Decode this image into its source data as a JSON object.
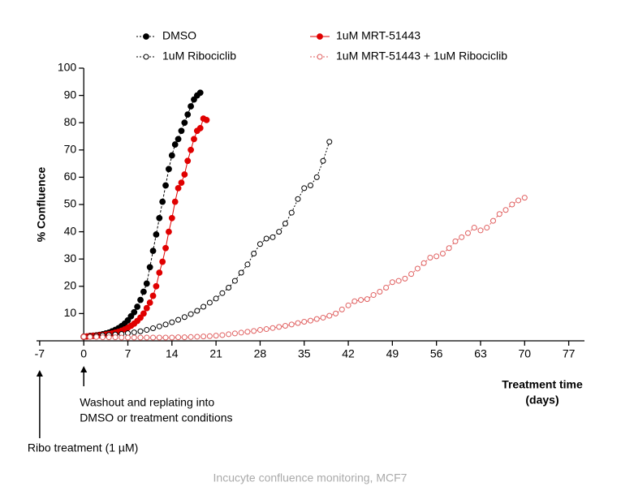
{
  "chart_data": {
    "type": "scatter-line",
    "y_label": "% Confluence",
    "x_label": [
      "Treatment time",
      "(days)"
    ],
    "xlim": [
      -7.5,
      79.5
    ],
    "ylim": [
      0,
      100
    ],
    "xticks": [
      -7,
      0,
      7,
      14,
      21,
      28,
      35,
      42,
      49,
      56,
      63,
      70,
      77
    ],
    "yticks": [
      10,
      20,
      30,
      40,
      50,
      60,
      70,
      80,
      90,
      100
    ],
    "series": [
      {
        "name": "DMSO",
        "color": "#000000",
        "filled": true,
        "x": [
          0,
          0.5,
          1,
          1.5,
          2,
          2.5,
          3,
          3.5,
          4,
          4.5,
          5,
          5.5,
          6,
          6.5,
          7,
          7.5,
          8,
          8.5,
          9,
          9.5,
          10,
          10.5,
          11,
          11.5,
          12,
          12.5,
          13,
          13.5,
          14,
          14.5,
          15,
          15.5,
          16,
          16.5,
          17,
          17.5,
          18,
          18.5
        ],
        "values": [
          1.5,
          1.6,
          1.8,
          1.9,
          2,
          2.2,
          2.4,
          2.7,
          3,
          3.5,
          4,
          4.6,
          5.4,
          6.3,
          7.5,
          9,
          10.5,
          12.5,
          15,
          18,
          21,
          27,
          33,
          39,
          45,
          51,
          57,
          63,
          68,
          72,
          74,
          77,
          80,
          83,
          86,
          88.5,
          90,
          91
        ]
      },
      {
        "name": "1uM MRT-51443",
        "color": "#e00000",
        "filled": true,
        "x": [
          0,
          0.5,
          1,
          1.5,
          2,
          2.5,
          3,
          3.5,
          4,
          4.5,
          5,
          5.5,
          6,
          6.5,
          7,
          7.5,
          8,
          8.5,
          9,
          9.5,
          10,
          10.5,
          11,
          11.5,
          12,
          12.5,
          13,
          13.5,
          14,
          14.5,
          15,
          15.5,
          16,
          16.5,
          17,
          17.5,
          18,
          18.5,
          19,
          19.5
        ],
        "values": [
          1.5,
          1.6,
          1.7,
          1.8,
          1.9,
          2,
          2.1,
          2.3,
          2.5,
          2.7,
          3,
          3.3,
          3.7,
          4.2,
          4.8,
          5.5,
          6.3,
          7.3,
          8.5,
          10,
          12,
          14,
          16.5,
          20,
          25,
          29,
          34,
          40,
          45,
          51,
          56,
          58,
          61,
          66,
          70,
          74,
          77,
          78,
          81.5,
          81
        ]
      },
      {
        "name": "1uM Ribociclib",
        "color": "#000000",
        "filled": false,
        "x": [
          0,
          1,
          2,
          3,
          4,
          5,
          6,
          7,
          8,
          9,
          10,
          11,
          12,
          13,
          14,
          15,
          16,
          17,
          18,
          19,
          20,
          21,
          22,
          23,
          24,
          25,
          26,
          27,
          28,
          29,
          30,
          31,
          32,
          33,
          34,
          35,
          36,
          37,
          38,
          39
        ],
        "values": [
          1.5,
          1.6,
          1.8,
          2,
          2.1,
          2.3,
          2.5,
          2.8,
          3.1,
          3.5,
          4,
          4.6,
          5.3,
          6,
          6.8,
          7.7,
          8.7,
          9.8,
          11,
          12.5,
          14,
          15.5,
          17.5,
          19.5,
          22,
          25,
          28,
          32,
          35.5,
          37.5,
          38,
          40,
          43,
          47,
          52,
          56,
          57,
          60,
          66,
          73
        ]
      },
      {
        "name": "1uM MRT-51443 + 1uM Ribociclib",
        "color": "#e06060",
        "filled": false,
        "x": [
          0,
          1,
          2,
          3,
          4,
          5,
          6,
          7,
          8,
          9,
          10,
          11,
          12,
          13,
          14,
          15,
          16,
          17,
          18,
          19,
          20,
          21,
          22,
          23,
          24,
          25,
          26,
          27,
          28,
          29,
          30,
          31,
          32,
          33,
          34,
          35,
          36,
          37,
          38,
          39,
          40,
          41,
          42,
          43,
          44,
          45,
          46,
          47,
          48,
          49,
          50,
          51,
          52,
          53,
          54,
          55,
          56,
          57,
          58,
          59,
          60,
          61,
          62,
          63,
          64,
          65,
          66,
          67,
          68,
          69,
          70
        ],
        "values": [
          1.5,
          1.4,
          1.4,
          1.3,
          1.3,
          1.3,
          1.2,
          1.2,
          1.2,
          1.2,
          1.2,
          1.2,
          1.2,
          1.2,
          1.2,
          1.3,
          1.3,
          1.4,
          1.5,
          1.6,
          1.7,
          1.9,
          2.1,
          2.4,
          2.7,
          3,
          3.3,
          3.6,
          4,
          4.3,
          4.7,
          5.1,
          5.5,
          6,
          6.5,
          7,
          7.4,
          8,
          8.5,
          9.2,
          10,
          11.5,
          13,
          14.5,
          15,
          15.3,
          16.8,
          18,
          19.5,
          21.5,
          22,
          22.8,
          24.5,
          26.5,
          28.5,
          30.5,
          31,
          32,
          34,
          36.5,
          38,
          39.5,
          41.5,
          40.5,
          41.5,
          44,
          46.5,
          48,
          50,
          51.5,
          52.5
        ]
      }
    ],
    "annotations": [
      {
        "x": 0,
        "lines": [
          "Washout and replating into",
          "DMSO or treatment conditions"
        ]
      },
      {
        "x": -7,
        "lines": [
          "Ribo treatment (1 µM)"
        ]
      }
    ],
    "caption": "Incucyte confluence monitoring, MCF7"
  }
}
